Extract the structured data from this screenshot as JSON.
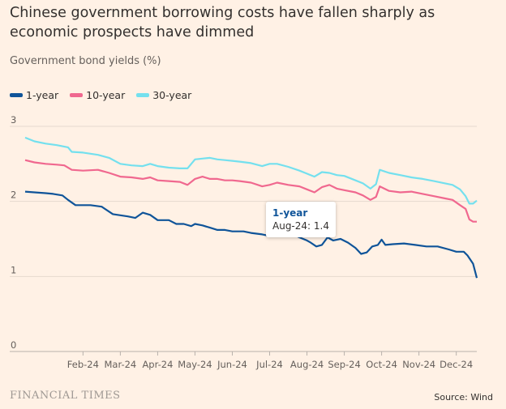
{
  "header": {
    "title": "Chinese government borrowing costs have fallen sharply as economic prospects have dimmed",
    "subtitle": "Government bond yields (%)"
  },
  "legend": [
    {
      "label": "1-year",
      "color": "#0F5499"
    },
    {
      "label": "10-year",
      "color": "#F0688F"
    },
    {
      "label": "30-year",
      "color": "#74E0EE"
    }
  ],
  "tooltip": {
    "series": "1-year",
    "date": "Aug-24",
    "value": "1.4"
  },
  "footer": {
    "brand": "FINANCIAL TIMES",
    "source": "Source: Wind"
  },
  "chart_data": {
    "type": "line",
    "ylabel": "Government bond yields (%)",
    "ylim": [
      0,
      3
    ],
    "yticks": [
      0,
      1,
      2,
      3
    ],
    "xlim": [
      -0.55,
      11.55
    ],
    "xticks": [
      {
        "label": "Feb-24",
        "pos": 1
      },
      {
        "label": "Mar-24",
        "pos": 2
      },
      {
        "label": "Apr-24",
        "pos": 3
      },
      {
        "label": "May-24",
        "pos": 4
      },
      {
        "label": "Jun-24",
        "pos": 5
      },
      {
        "label": "Jul-24",
        "pos": 6
      },
      {
        "label": "Aug-24",
        "pos": 7
      },
      {
        "label": "Sep-24",
        "pos": 8
      },
      {
        "label": "Oct-24",
        "pos": 9
      },
      {
        "label": "Nov-24",
        "pos": 10
      },
      {
        "label": "Dec-24",
        "pos": 11
      }
    ],
    "grid": true,
    "legend_position": "top-left",
    "series": [
      {
        "name": "1-year",
        "color": "#0F5499",
        "points": [
          [
            -0.55,
            2.13
          ],
          [
            -0.3,
            2.12
          ],
          [
            0,
            2.11
          ],
          [
            0.2,
            2.1
          ],
          [
            0.45,
            2.08
          ],
          [
            0.6,
            2.02
          ],
          [
            0.8,
            1.95
          ],
          [
            1.2,
            1.95
          ],
          [
            1.5,
            1.93
          ],
          [
            1.8,
            1.83
          ],
          [
            2.2,
            1.8
          ],
          [
            2.4,
            1.78
          ],
          [
            2.6,
            1.85
          ],
          [
            2.8,
            1.82
          ],
          [
            3.0,
            1.75
          ],
          [
            3.3,
            1.75
          ],
          [
            3.5,
            1.7
          ],
          [
            3.7,
            1.7
          ],
          [
            3.9,
            1.67
          ],
          [
            4.0,
            1.7
          ],
          [
            4.2,
            1.68
          ],
          [
            4.4,
            1.65
          ],
          [
            4.6,
            1.62
          ],
          [
            4.8,
            1.62
          ],
          [
            5.0,
            1.6
          ],
          [
            5.3,
            1.6
          ],
          [
            5.5,
            1.58
          ],
          [
            5.8,
            1.56
          ],
          [
            6.0,
            1.54
          ],
          [
            6.2,
            1.55
          ],
          [
            6.4,
            1.58
          ],
          [
            6.6,
            1.57
          ],
          [
            6.8,
            1.52
          ],
          [
            7.0,
            1.48
          ],
          [
            7.1,
            1.45
          ],
          [
            7.25,
            1.4
          ],
          [
            7.4,
            1.42
          ],
          [
            7.55,
            1.52
          ],
          [
            7.7,
            1.48
          ],
          [
            7.9,
            1.5
          ],
          [
            8.1,
            1.45
          ],
          [
            8.3,
            1.38
          ],
          [
            8.45,
            1.3
          ],
          [
            8.6,
            1.32
          ],
          [
            8.75,
            1.4
          ],
          [
            8.9,
            1.42
          ],
          [
            9.0,
            1.49
          ],
          [
            9.1,
            1.42
          ],
          [
            9.3,
            1.43
          ],
          [
            9.6,
            1.44
          ],
          [
            9.9,
            1.42
          ],
          [
            10.2,
            1.4
          ],
          [
            10.5,
            1.4
          ],
          [
            10.8,
            1.36
          ],
          [
            11.0,
            1.33
          ],
          [
            11.2,
            1.33
          ],
          [
            11.3,
            1.28
          ],
          [
            11.45,
            1.17
          ],
          [
            11.55,
            0.98
          ]
        ]
      },
      {
        "name": "10-year",
        "color": "#F0688F",
        "points": [
          [
            -0.55,
            2.55
          ],
          [
            -0.3,
            2.52
          ],
          [
            0,
            2.5
          ],
          [
            0.3,
            2.49
          ],
          [
            0.5,
            2.48
          ],
          [
            0.7,
            2.42
          ],
          [
            1.0,
            2.41
          ],
          [
            1.4,
            2.42
          ],
          [
            1.7,
            2.38
          ],
          [
            2.0,
            2.33
          ],
          [
            2.3,
            2.32
          ],
          [
            2.6,
            2.3
          ],
          [
            2.8,
            2.32
          ],
          [
            3.0,
            2.28
          ],
          [
            3.3,
            2.27
          ],
          [
            3.6,
            2.26
          ],
          [
            3.8,
            2.22
          ],
          [
            4.0,
            2.3
          ],
          [
            4.2,
            2.33
          ],
          [
            4.4,
            2.3
          ],
          [
            4.6,
            2.3
          ],
          [
            4.8,
            2.28
          ],
          [
            5.0,
            2.28
          ],
          [
            5.2,
            2.27
          ],
          [
            5.5,
            2.25
          ],
          [
            5.8,
            2.2
          ],
          [
            6.0,
            2.22
          ],
          [
            6.2,
            2.25
          ],
          [
            6.5,
            2.22
          ],
          [
            6.8,
            2.2
          ],
          [
            7.0,
            2.16
          ],
          [
            7.2,
            2.12
          ],
          [
            7.4,
            2.19
          ],
          [
            7.6,
            2.22
          ],
          [
            7.8,
            2.17
          ],
          [
            8.0,
            2.15
          ],
          [
            8.3,
            2.12
          ],
          [
            8.5,
            2.08
          ],
          [
            8.7,
            2.02
          ],
          [
            8.85,
            2.06
          ],
          [
            8.95,
            2.2
          ],
          [
            9.2,
            2.14
          ],
          [
            9.5,
            2.12
          ],
          [
            9.8,
            2.13
          ],
          [
            10.1,
            2.1
          ],
          [
            10.4,
            2.07
          ],
          [
            10.7,
            2.04
          ],
          [
            10.9,
            2.02
          ],
          [
            11.1,
            1.95
          ],
          [
            11.25,
            1.9
          ],
          [
            11.35,
            1.76
          ],
          [
            11.45,
            1.73
          ],
          [
            11.55,
            1.73
          ]
        ]
      },
      {
        "name": "30-year",
        "color": "#74E0EE",
        "points": [
          [
            -0.55,
            2.85
          ],
          [
            -0.3,
            2.8
          ],
          [
            0,
            2.77
          ],
          [
            0.3,
            2.75
          ],
          [
            0.6,
            2.72
          ],
          [
            0.7,
            2.66
          ],
          [
            1.0,
            2.65
          ],
          [
            1.4,
            2.62
          ],
          [
            1.7,
            2.58
          ],
          [
            2.0,
            2.5
          ],
          [
            2.3,
            2.48
          ],
          [
            2.6,
            2.47
          ],
          [
            2.8,
            2.5
          ],
          [
            3.0,
            2.47
          ],
          [
            3.3,
            2.45
          ],
          [
            3.6,
            2.44
          ],
          [
            3.8,
            2.44
          ],
          [
            4.0,
            2.56
          ],
          [
            4.2,
            2.57
          ],
          [
            4.4,
            2.58
          ],
          [
            4.6,
            2.56
          ],
          [
            4.8,
            2.55
          ],
          [
            5.0,
            2.54
          ],
          [
            5.2,
            2.53
          ],
          [
            5.5,
            2.51
          ],
          [
            5.8,
            2.47
          ],
          [
            6.0,
            2.5
          ],
          [
            6.2,
            2.5
          ],
          [
            6.5,
            2.46
          ],
          [
            6.8,
            2.41
          ],
          [
            7.0,
            2.37
          ],
          [
            7.2,
            2.33
          ],
          [
            7.4,
            2.39
          ],
          [
            7.6,
            2.38
          ],
          [
            7.8,
            2.35
          ],
          [
            8.0,
            2.34
          ],
          [
            8.3,
            2.28
          ],
          [
            8.5,
            2.24
          ],
          [
            8.7,
            2.17
          ],
          [
            8.85,
            2.23
          ],
          [
            8.95,
            2.42
          ],
          [
            9.2,
            2.38
          ],
          [
            9.5,
            2.35
          ],
          [
            9.8,
            2.32
          ],
          [
            10.1,
            2.3
          ],
          [
            10.4,
            2.27
          ],
          [
            10.7,
            2.24
          ],
          [
            10.9,
            2.22
          ],
          [
            11.1,
            2.16
          ],
          [
            11.25,
            2.07
          ],
          [
            11.35,
            1.97
          ],
          [
            11.45,
            1.97
          ],
          [
            11.55,
            2.01
          ]
        ]
      }
    ]
  }
}
